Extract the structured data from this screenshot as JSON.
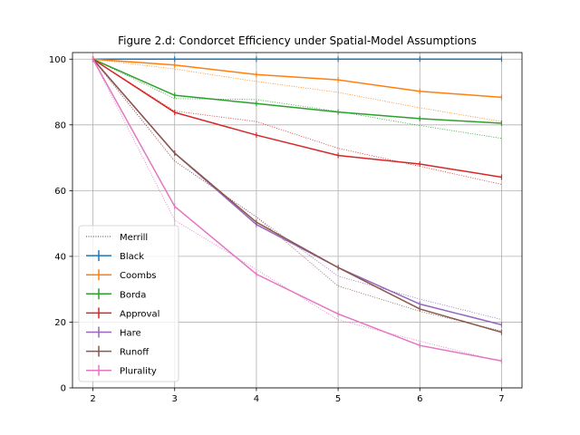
{
  "chart_data": {
    "type": "line",
    "title": "Figure 2.d: Condorcet Efficiency under Spatial-Model Assumptions",
    "xlabel": "",
    "ylabel": "",
    "xlim": [
      1.75,
      7.25
    ],
    "ylim": [
      0,
      102
    ],
    "x": [
      2,
      3,
      4,
      5,
      6,
      7
    ],
    "x_ticks": [
      2,
      3,
      4,
      5,
      6,
      7
    ],
    "y_ticks": [
      0,
      20,
      40,
      60,
      80,
      100
    ],
    "grid": true,
    "legend_position": "lower-left",
    "series": [
      {
        "name": "Black",
        "color": "#1f77b4",
        "values": [
          100,
          100,
          100,
          100,
          100,
          100
        ]
      },
      {
        "name": "Coombs",
        "color": "#ff7f0e",
        "values": [
          100,
          98.2,
          95.3,
          93.7,
          90.2,
          88.4
        ]
      },
      {
        "name": "Borda",
        "color": "#2ca02c",
        "values": [
          100,
          89.0,
          86.5,
          83.9,
          81.9,
          80.5
        ]
      },
      {
        "name": "Approval",
        "color": "#d62728",
        "values": [
          100,
          83.8,
          76.9,
          70.7,
          68.1,
          64.1
        ]
      },
      {
        "name": "Hare",
        "color": "#9467bd",
        "values": [
          100,
          71.4,
          49.7,
          36.6,
          25.5,
          19.2
        ]
      },
      {
        "name": "Runoff",
        "color": "#8c564b",
        "values": [
          100,
          71.4,
          50.4,
          36.6,
          24.0,
          16.9
        ]
      },
      {
        "name": "Plurality",
        "color": "#e377c2",
        "values": [
          100,
          55.2,
          34.6,
          22.5,
          12.9,
          8.2
        ]
      }
    ],
    "merrill_label": "Merrill",
    "merrill_reference": [
      {
        "color": "#ff7f0e",
        "values": [
          100,
          97.0,
          93.2,
          89.9,
          85.2,
          81.0
        ]
      },
      {
        "color": "#2ca02c",
        "values": [
          100,
          88.0,
          87.7,
          84.1,
          79.8,
          75.9
        ]
      },
      {
        "color": "#d62728",
        "values": [
          100,
          84.2,
          81.0,
          72.9,
          67.4,
          61.9
        ]
      },
      {
        "color": "#9467bd",
        "values": [
          100,
          69.0,
          52.0,
          34.0,
          27.0,
          20.8
        ]
      },
      {
        "color": "#8c564b",
        "values": [
          100,
          69.0,
          52.0,
          31.0,
          23.3,
          17.3
        ]
      },
      {
        "color": "#e377c2",
        "values": [
          100,
          51.0,
          36.0,
          20.7,
          14.2,
          8.0
        ]
      }
    ]
  }
}
